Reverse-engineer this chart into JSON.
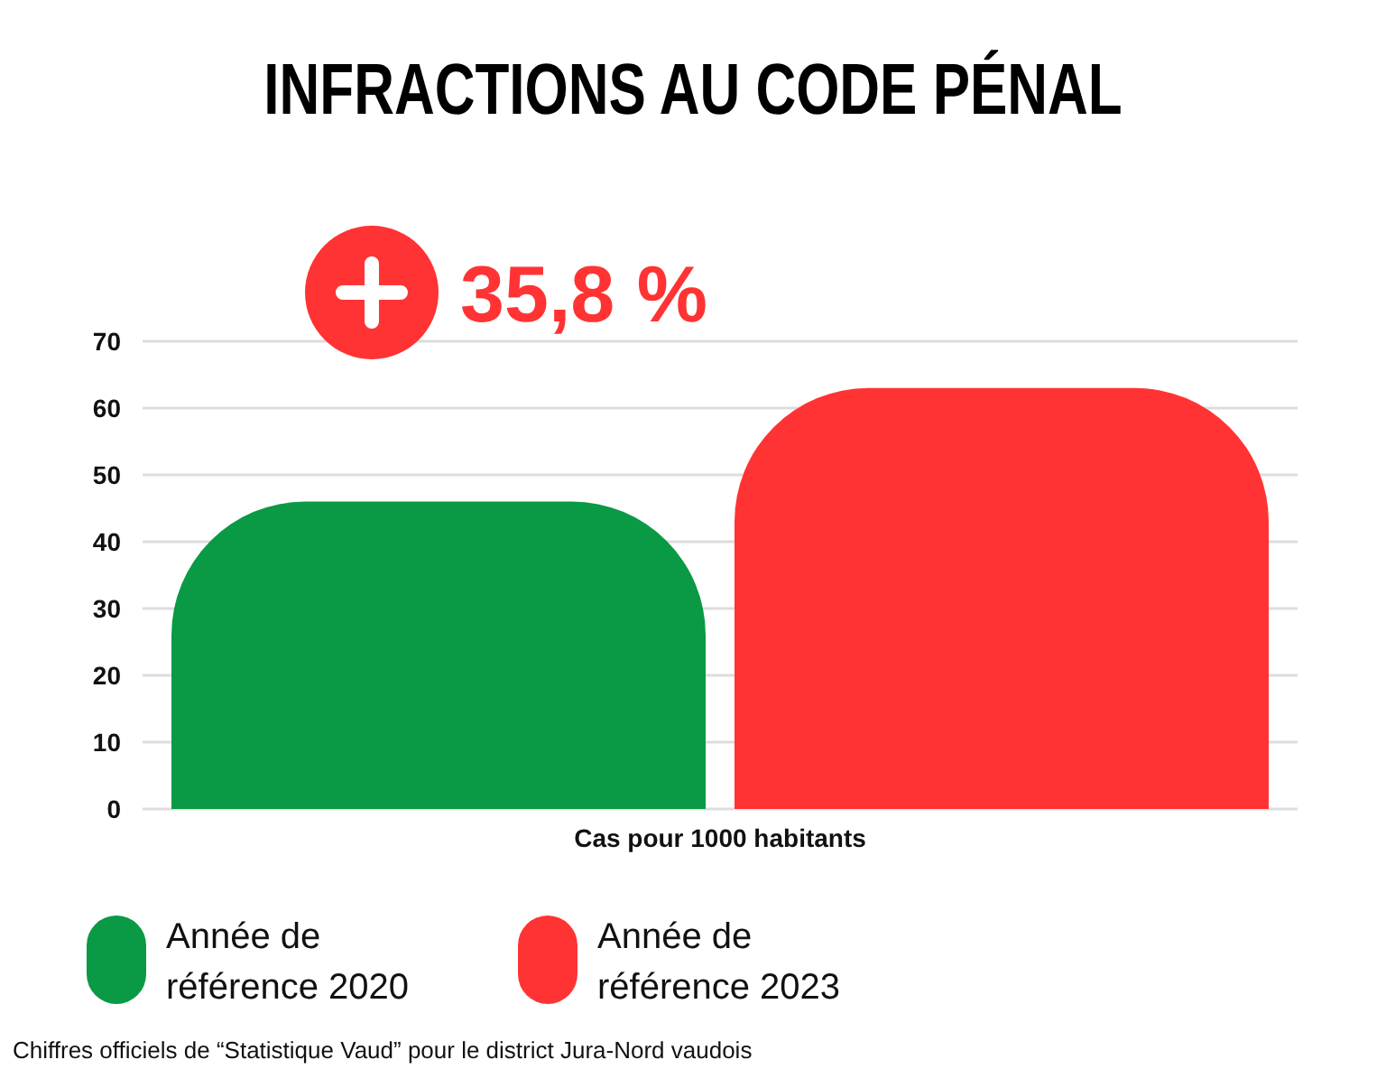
{
  "chart_data": {
    "type": "bar",
    "title": "INFRACTIONS AU CODE PÉNAL",
    "xlabel": "Cas pour 1000 habitants",
    "categories": [
      null
    ],
    "series": [
      {
        "name": "Année de référence 2020",
        "color": "#0a9944",
        "values": [
          46
        ]
      },
      {
        "name": "Année de référence 2023",
        "color": "#ff3333",
        "values": [
          63
        ]
      }
    ],
    "ylim": [
      0,
      70
    ],
    "yticks": [
      0,
      10,
      20,
      30,
      40,
      50,
      60,
      70
    ],
    "grid": "y",
    "legend": "bottom",
    "annotations": [
      "35,8 %",
      "Chiffres officiels de “Statistique Vaud” pour le district Jura-Nord vaudois"
    ]
  }
}
